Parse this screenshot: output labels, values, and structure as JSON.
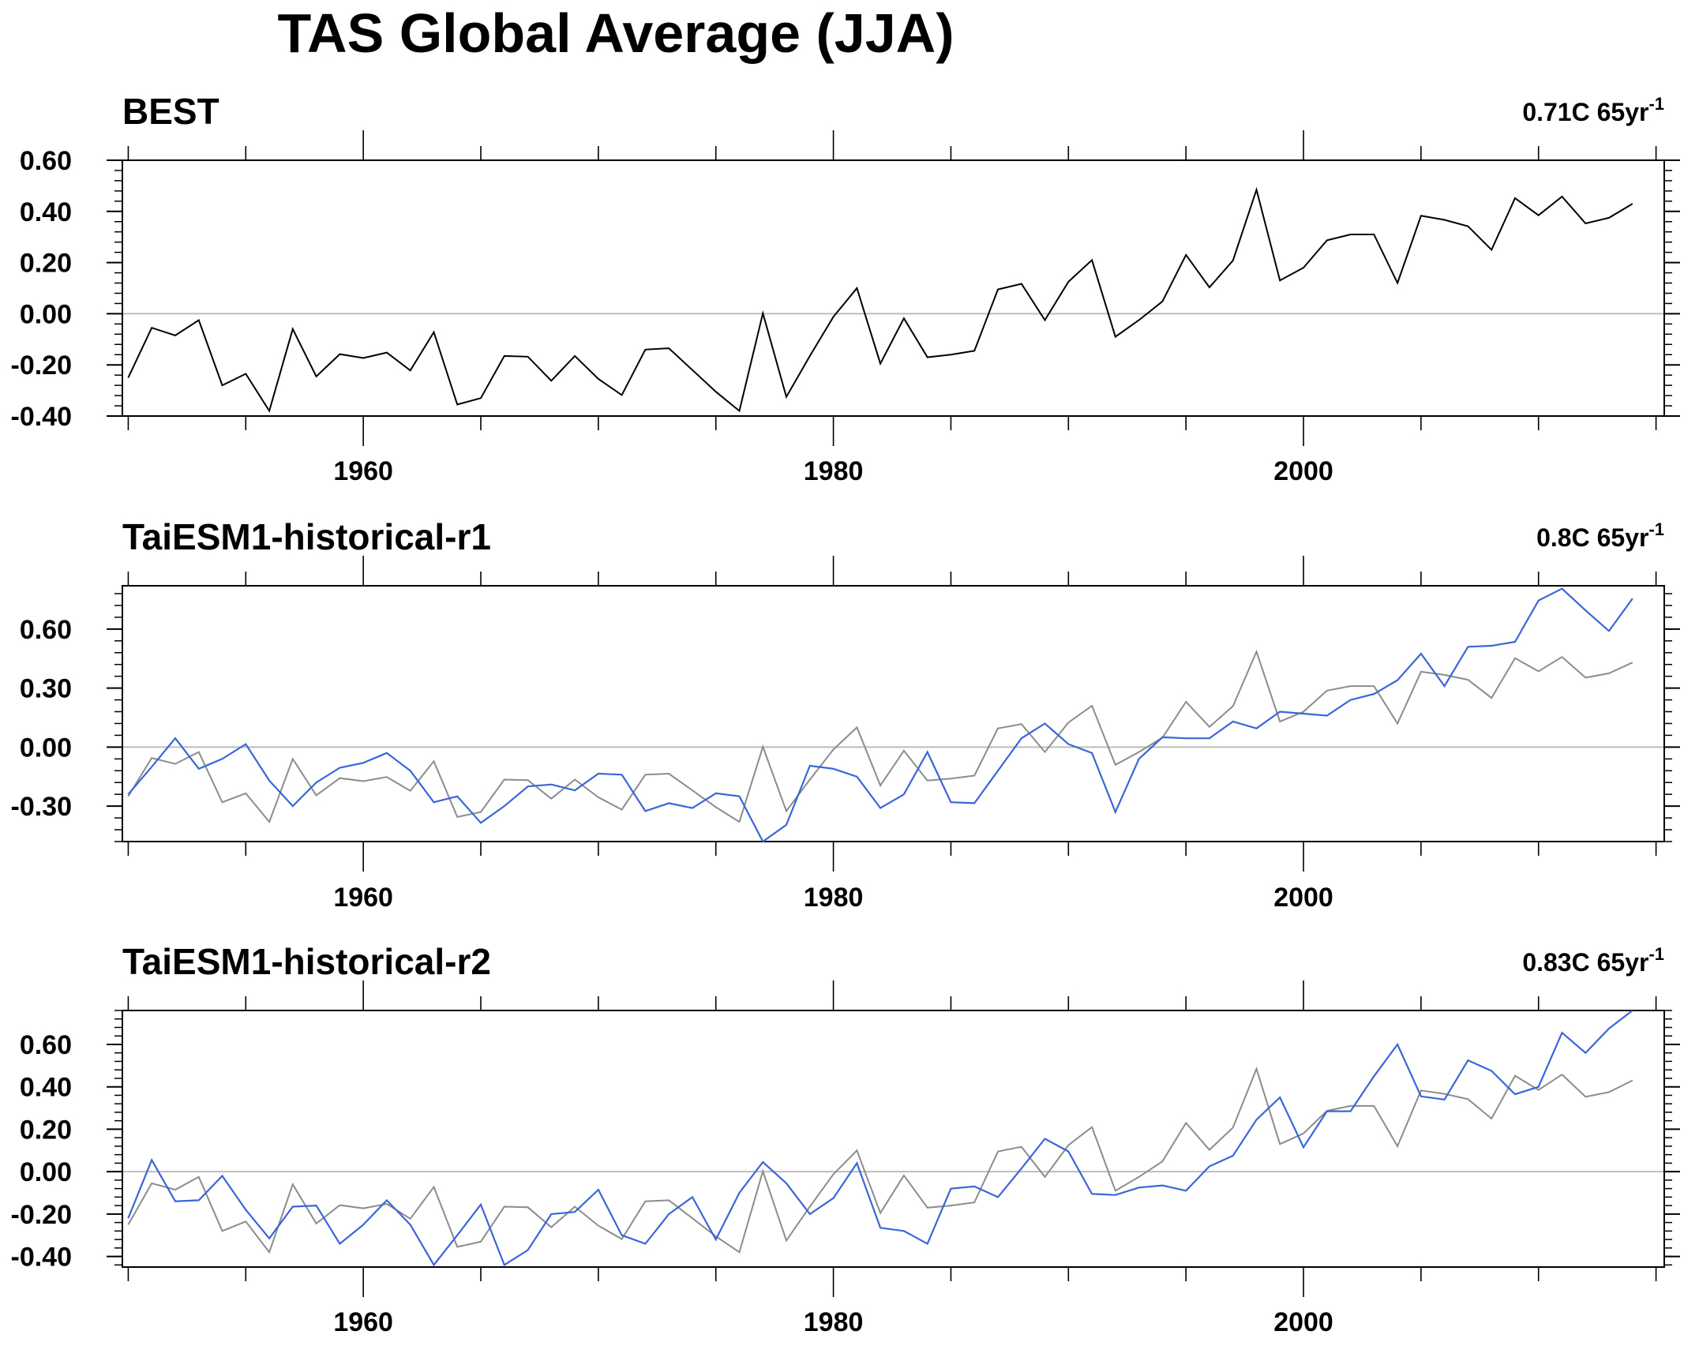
{
  "figure": {
    "title": "TAS Global Average (JJA)"
  },
  "colors": {
    "observed": "#000000",
    "observed_ref": "#8c8c8c",
    "model": "#3a66d6",
    "zero_line": "#bdbdbd",
    "axis": "#000000"
  },
  "chart_data": [
    {
      "type": "line",
      "title": "BEST",
      "trend_label": "0.71C 65yr",
      "trend_superscript": "-1",
      "xlabel": "",
      "ylabel": "",
      "xlim": [
        1950,
        2015
      ],
      "ylim": [
        -0.4,
        0.6
      ],
      "yticks": [
        0.6,
        0.4,
        0.2,
        0.0,
        -0.2,
        -0.4
      ],
      "ytick_labels": [
        "0.60",
        "0.40",
        "0.20",
        "0.00",
        "-0.20",
        "-0.40"
      ],
      "xticks": [
        1960,
        1980,
        2000
      ],
      "xtick_labels": [
        "1960",
        "1980",
        "2000"
      ],
      "x_start": 1950,
      "series": [
        {
          "role": "observed",
          "color": "#000000",
          "values": [
            -0.25,
            -0.055,
            -0.085,
            -0.025,
            -0.28,
            -0.235,
            -0.38,
            -0.06,
            -0.245,
            -0.158,
            -0.173,
            -0.152,
            -0.222,
            -0.072,
            -0.355,
            -0.33,
            -0.165,
            -0.168,
            -0.262,
            -0.165,
            -0.255,
            -0.318,
            -0.14,
            -0.135,
            -0.22,
            -0.305,
            -0.38,
            0.002,
            -0.325,
            -0.165,
            -0.012,
            0.1,
            -0.195,
            -0.018,
            -0.17,
            -0.16,
            -0.145,
            0.095,
            0.117,
            -0.025,
            0.125,
            0.21,
            -0.09,
            -0.025,
            0.048,
            0.23,
            0.103,
            0.208,
            0.485,
            0.13,
            0.18,
            0.287,
            0.31,
            0.31,
            0.12,
            0.383,
            0.367,
            0.342,
            0.25,
            0.452,
            0.385,
            0.458,
            0.353,
            0.375,
            0.43
          ]
        }
      ]
    },
    {
      "type": "line",
      "title": "TaiESM1-historical-r1",
      "trend_label": "0.8C 65yr",
      "trend_superscript": "-1",
      "xlabel": "",
      "ylabel": "",
      "xlim": [
        1950,
        2015
      ],
      "ylim": [
        -0.48,
        0.82
      ],
      "yticks": [
        0.6,
        0.3,
        0.0,
        -0.3
      ],
      "ytick_labels": [
        "0.60",
        "0.30",
        "0.00",
        "-0.30"
      ],
      "xticks": [
        1960,
        1980,
        2000
      ],
      "xtick_labels": [
        "1960",
        "1980",
        "2000"
      ],
      "x_start": 1950,
      "series": [
        {
          "role": "observed_ref",
          "color": "#8c8c8c",
          "values": [
            -0.25,
            -0.055,
            -0.085,
            -0.025,
            -0.28,
            -0.235,
            -0.38,
            -0.06,
            -0.245,
            -0.158,
            -0.173,
            -0.152,
            -0.222,
            -0.072,
            -0.355,
            -0.33,
            -0.165,
            -0.168,
            -0.262,
            -0.165,
            -0.255,
            -0.318,
            -0.14,
            -0.135,
            -0.22,
            -0.305,
            -0.38,
            0.002,
            -0.325,
            -0.165,
            -0.012,
            0.1,
            -0.195,
            -0.018,
            -0.17,
            -0.16,
            -0.145,
            0.095,
            0.117,
            -0.025,
            0.125,
            0.21,
            -0.09,
            -0.025,
            0.048,
            0.23,
            0.103,
            0.208,
            0.485,
            0.13,
            0.18,
            0.287,
            0.31,
            0.31,
            0.12,
            0.383,
            0.367,
            0.342,
            0.25,
            0.452,
            0.385,
            0.458,
            0.353,
            0.375,
            0.43
          ]
        },
        {
          "role": "model",
          "color": "#3a66d6",
          "values": [
            -0.24,
            -0.1,
            0.045,
            -0.11,
            -0.06,
            0.015,
            -0.17,
            -0.3,
            -0.18,
            -0.105,
            -0.08,
            -0.03,
            -0.12,
            -0.28,
            -0.25,
            -0.385,
            -0.3,
            -0.2,
            -0.19,
            -0.22,
            -0.135,
            -0.14,
            -0.325,
            -0.285,
            -0.31,
            -0.235,
            -0.25,
            -0.48,
            -0.395,
            -0.095,
            -0.11,
            -0.15,
            -0.31,
            -0.24,
            -0.025,
            -0.28,
            -0.285,
            -0.12,
            0.045,
            0.12,
            0.015,
            -0.03,
            -0.33,
            -0.06,
            0.05,
            0.045,
            0.045,
            0.13,
            0.095,
            0.18,
            0.17,
            0.16,
            0.24,
            0.27,
            0.34,
            0.475,
            0.31,
            0.51,
            0.515,
            0.535,
            0.745,
            0.805,
            0.695,
            0.59,
            0.755
          ]
        }
      ]
    },
    {
      "type": "line",
      "title": "TaiESM1-historical-r2",
      "trend_label": "0.83C 65yr",
      "trend_superscript": "-1",
      "xlabel": "",
      "ylabel": "",
      "xlim": [
        1950,
        2015
      ],
      "ylim": [
        -0.45,
        0.76
      ],
      "yticks": [
        0.6,
        0.4,
        0.2,
        0.0,
        -0.2,
        -0.4
      ],
      "ytick_labels": [
        "0.60",
        "0.40",
        "0.20",
        "0.00",
        "-0.20",
        "-0.40"
      ],
      "xticks": [
        1960,
        1980,
        2000
      ],
      "xtick_labels": [
        "1960",
        "1980",
        "2000"
      ],
      "x_start": 1950,
      "series": [
        {
          "role": "observed_ref",
          "color": "#8c8c8c",
          "values": [
            -0.25,
            -0.055,
            -0.085,
            -0.025,
            -0.28,
            -0.235,
            -0.38,
            -0.06,
            -0.245,
            -0.158,
            -0.173,
            -0.152,
            -0.222,
            -0.072,
            -0.355,
            -0.33,
            -0.165,
            -0.168,
            -0.262,
            -0.165,
            -0.255,
            -0.318,
            -0.14,
            -0.135,
            -0.22,
            -0.305,
            -0.38,
            0.002,
            -0.325,
            -0.165,
            -0.012,
            0.1,
            -0.195,
            -0.018,
            -0.17,
            -0.16,
            -0.145,
            0.095,
            0.117,
            -0.025,
            0.125,
            0.21,
            -0.09,
            -0.025,
            0.048,
            0.23,
            0.103,
            0.208,
            0.485,
            0.13,
            0.18,
            0.287,
            0.31,
            0.31,
            0.12,
            0.383,
            0.367,
            0.342,
            0.25,
            0.452,
            0.385,
            0.458,
            0.353,
            0.375,
            0.43
          ]
        },
        {
          "role": "model",
          "color": "#3a66d6",
          "values": [
            -0.22,
            0.055,
            -0.14,
            -0.135,
            -0.02,
            -0.18,
            -0.315,
            -0.165,
            -0.16,
            -0.34,
            -0.25,
            -0.135,
            -0.25,
            -0.44,
            -0.3,
            -0.155,
            -0.44,
            -0.37,
            -0.2,
            -0.19,
            -0.085,
            -0.3,
            -0.34,
            -0.2,
            -0.12,
            -0.32,
            -0.1,
            0.045,
            -0.055,
            -0.2,
            -0.125,
            0.04,
            -0.265,
            -0.28,
            -0.34,
            -0.08,
            -0.07,
            -0.12,
            0.015,
            0.155,
            0.095,
            -0.105,
            -0.11,
            -0.075,
            -0.065,
            -0.09,
            0.025,
            0.075,
            0.245,
            0.35,
            0.115,
            0.285,
            0.285,
            0.45,
            0.6,
            0.355,
            0.34,
            0.525,
            0.475,
            0.365,
            0.4,
            0.655,
            0.56,
            0.675,
            0.76
          ]
        }
      ]
    }
  ]
}
